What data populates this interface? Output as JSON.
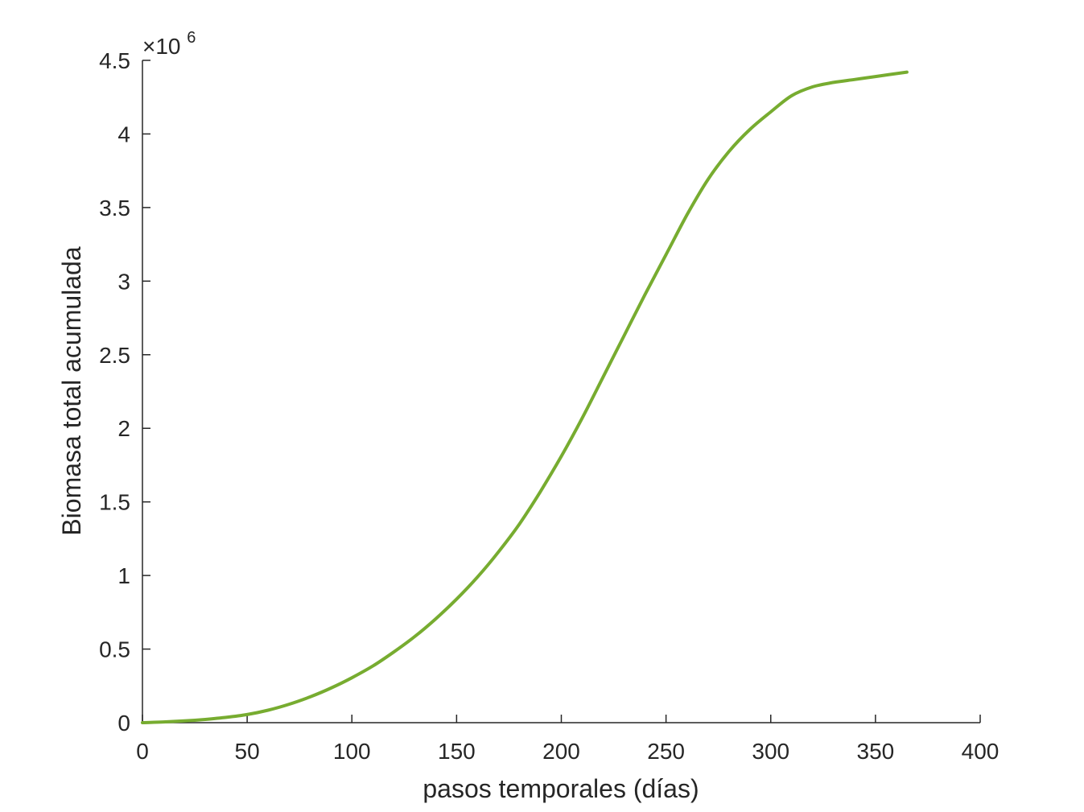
{
  "chart_data": {
    "type": "line",
    "title": "",
    "xlabel": "pasos temporales (días)",
    "ylabel": "Biomasa total acumulada",
    "y_exponent_label": "×10",
    "y_exponent_power": "6",
    "xlim": [
      0,
      400
    ],
    "ylim": [
      0,
      4.5
    ],
    "y_scale": 1000000,
    "x_ticks": [
      0,
      50,
      100,
      150,
      200,
      250,
      300,
      350,
      400
    ],
    "y_ticks": [
      0,
      0.5,
      1,
      1.5,
      2,
      2.5,
      3,
      3.5,
      4,
      4.5
    ],
    "x_tick_labels": [
      "0",
      "50",
      "100",
      "150",
      "200",
      "250",
      "300",
      "350",
      "400"
    ],
    "y_tick_labels": [
      "0",
      "0.5",
      "1",
      "1.5",
      "2",
      "2.5",
      "3",
      "3.5",
      "4",
      "4.5"
    ],
    "grid": false,
    "line_color": "#77ac30",
    "series": [
      {
        "x": [
          0,
          10,
          20,
          30,
          40,
          50,
          60,
          70,
          80,
          90,
          100,
          110,
          120,
          130,
          140,
          150,
          160,
          170,
          180,
          190,
          200,
          210,
          220,
          230,
          240,
          250,
          260,
          270,
          280,
          290,
          300,
          310,
          320,
          330,
          340,
          350,
          365
        ],
        "values": [
          0,
          0.005,
          0.012,
          0.022,
          0.036,
          0.055,
          0.085,
          0.125,
          0.175,
          0.235,
          0.305,
          0.385,
          0.48,
          0.585,
          0.705,
          0.84,
          0.99,
          1.16,
          1.35,
          1.57,
          1.81,
          2.07,
          2.35,
          2.63,
          2.91,
          3.18,
          3.45,
          3.69,
          3.88,
          4.03,
          4.15,
          4.26,
          4.32,
          4.35,
          4.37,
          4.39,
          4.42
        ]
      }
    ]
  }
}
